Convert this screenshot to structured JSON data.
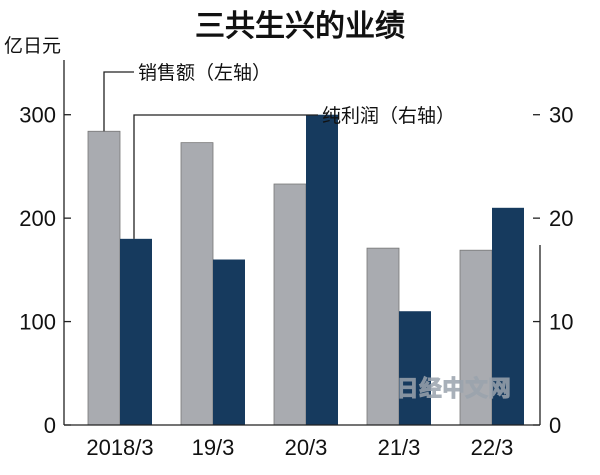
{
  "chart_data": {
    "type": "bar",
    "title": "三共生兴的业绩",
    "left_unit": "亿日元",
    "categories": [
      "2018/3",
      "19/3",
      "20/3",
      "21/3",
      "22/3"
    ],
    "series": [
      {
        "name": "销售额（左轴）",
        "axis": "left",
        "color": "#a9abb0",
        "values": [
          284,
          273,
          233,
          171,
          169
        ]
      },
      {
        "name": "纯利润（右轴）",
        "axis": "right",
        "color": "#163a5e",
        "values": [
          18,
          16,
          30,
          11,
          21
        ]
      }
    ],
    "y_left": {
      "ylim": [
        0,
        350
      ],
      "ticks": [
        0,
        100,
        200,
        300
      ]
    },
    "y_right": {
      "ylim": [
        0,
        35
      ],
      "ticks": [
        0,
        10,
        20,
        30
      ]
    },
    "grid": false,
    "legend": "callout lines"
  },
  "watermark": "日经中文网"
}
